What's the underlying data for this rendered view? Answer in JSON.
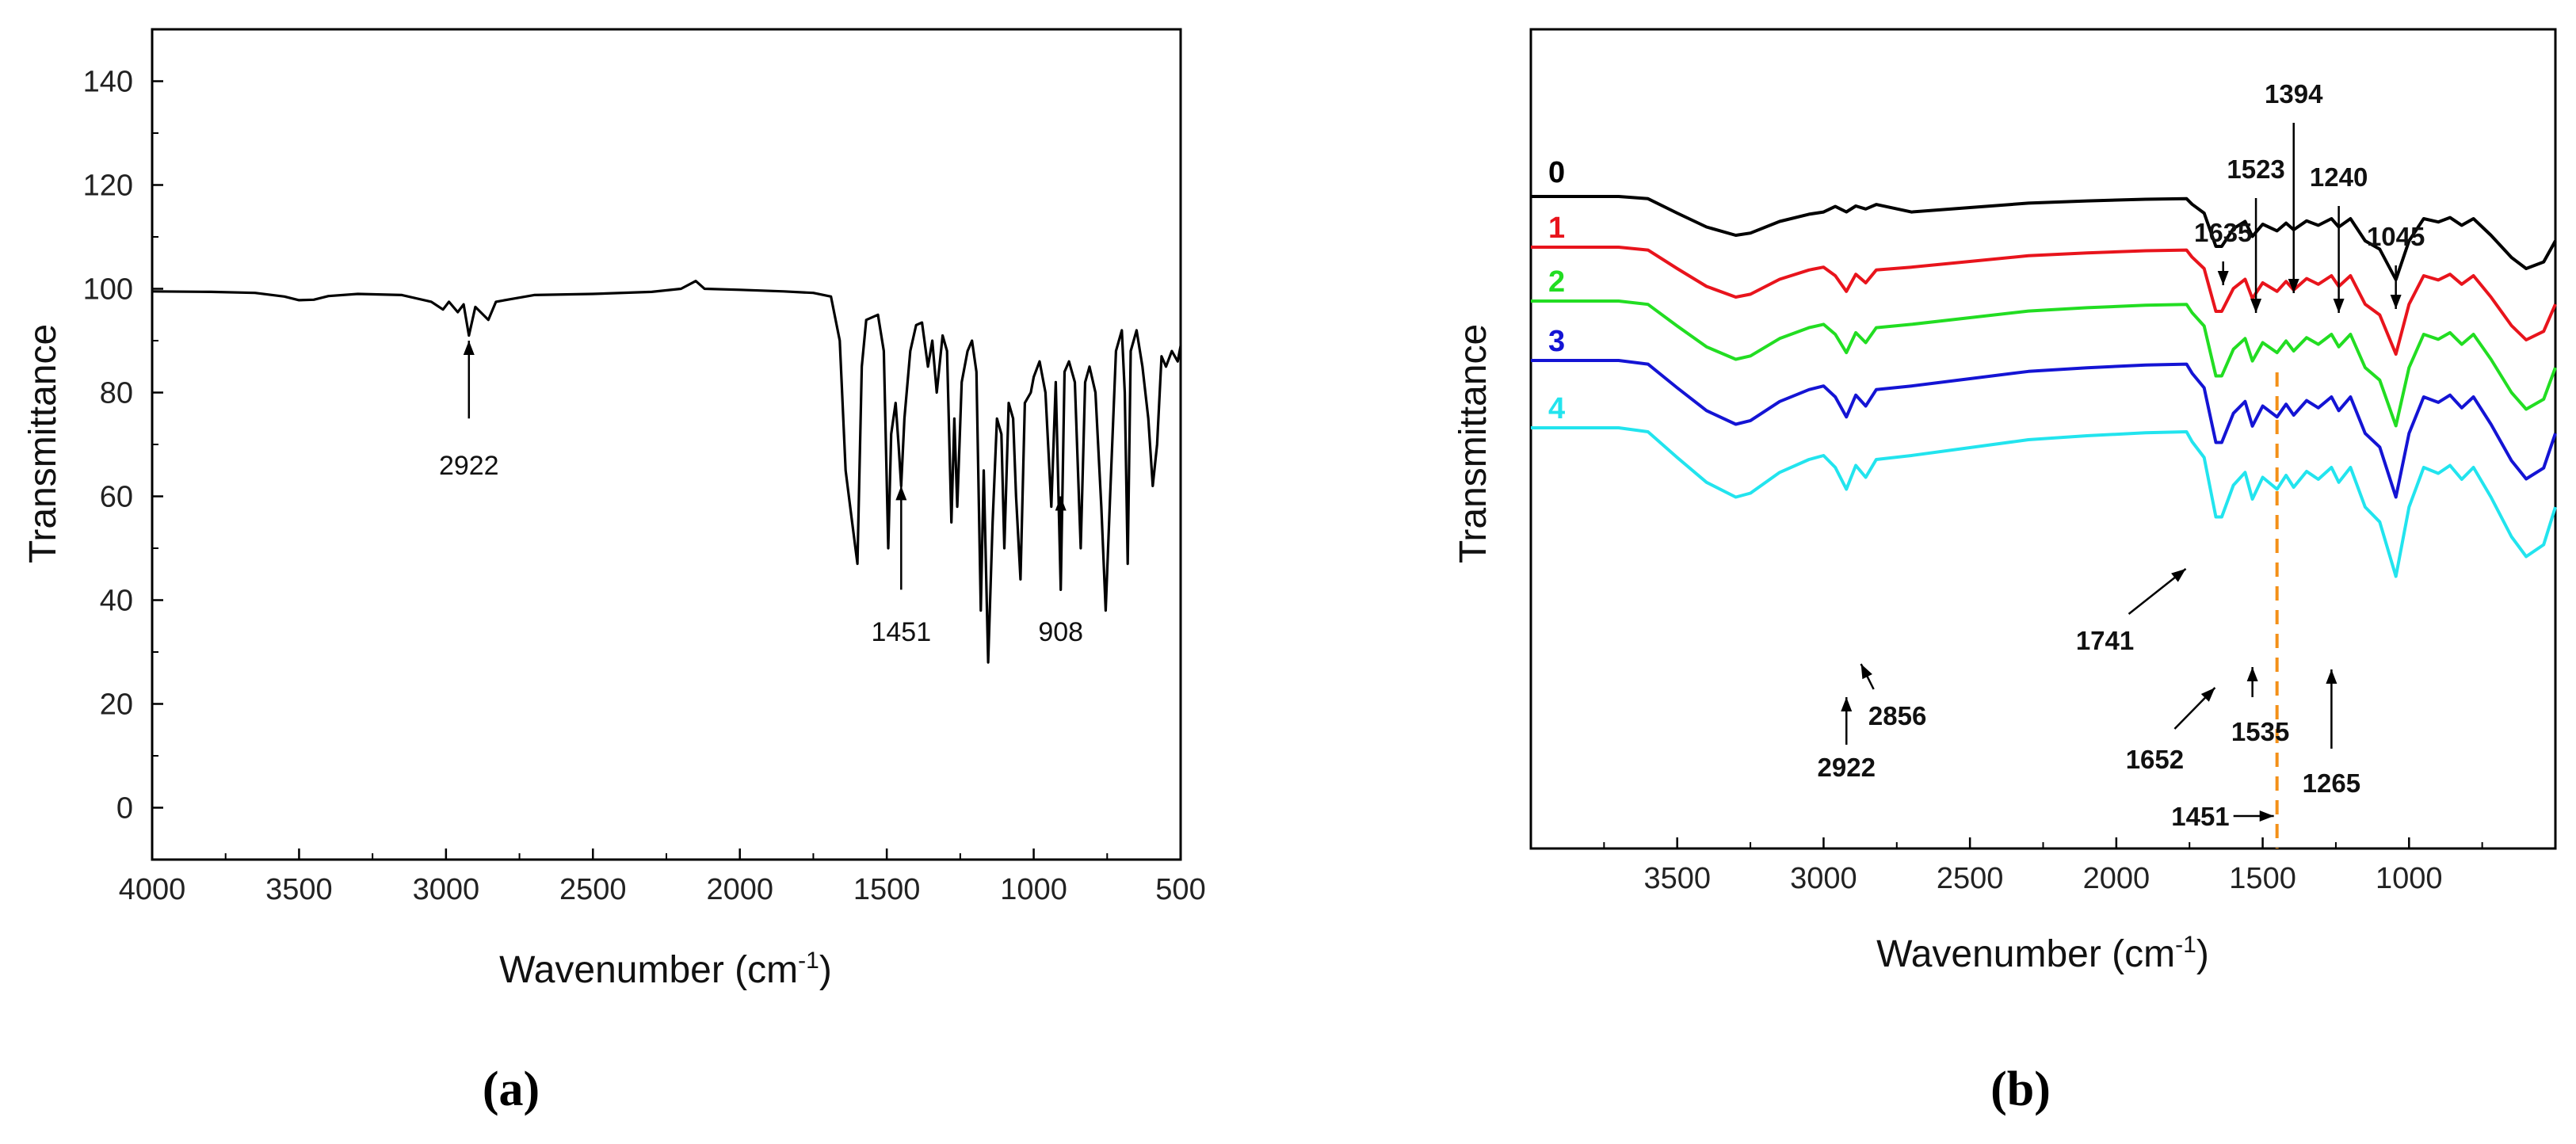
{
  "chart_data": [
    {
      "panel": "(a)",
      "type": "line",
      "xlabel": "Wavenumber (cm",
      "xlabel_sup": "-1",
      "xlabel_close": ")",
      "ylabel": "Transmittance",
      "xlim": [
        4000,
        500
      ],
      "ylim": [
        -10,
        150
      ],
      "xticks": [
        4000,
        3500,
        3000,
        2500,
        2000,
        1500,
        1000,
        500
      ],
      "yticks": [
        0,
        20,
        40,
        60,
        80,
        100,
        120,
        140
      ],
      "series": [
        {
          "name": "spectrum",
          "color": "#000000",
          "points": [
            [
              4000,
              99.5
            ],
            [
              3800,
              99.4
            ],
            [
              3650,
              99.2
            ],
            [
              3550,
              98.5
            ],
            [
              3500,
              97.8
            ],
            [
              3450,
              97.9
            ],
            [
              3400,
              98.6
            ],
            [
              3300,
              99.0
            ],
            [
              3150,
              98.8
            ],
            [
              3050,
              97.5
            ],
            [
              3010,
              96.0
            ],
            [
              2990,
              97.5
            ],
            [
              2960,
              95.5
            ],
            [
              2940,
              97.0
            ],
            [
              2922,
              91.0
            ],
            [
              2900,
              96.5
            ],
            [
              2856,
              94.0
            ],
            [
              2830,
              97.5
            ],
            [
              2700,
              98.8
            ],
            [
              2500,
              99.0
            ],
            [
              2300,
              99.4
            ],
            [
              2200,
              100.0
            ],
            [
              2150,
              101.5
            ],
            [
              2120,
              100.0
            ],
            [
              2000,
              99.8
            ],
            [
              1850,
              99.5
            ],
            [
              1750,
              99.2
            ],
            [
              1690,
              98.5
            ],
            [
              1660,
              90.0
            ],
            [
              1640,
              65.0
            ],
            [
              1620,
              56.0
            ],
            [
              1600,
              47.0
            ],
            [
              1585,
              85.0
            ],
            [
              1570,
              94.0
            ],
            [
              1530,
              95.0
            ],
            [
              1510,
              88.0
            ],
            [
              1495,
              50.0
            ],
            [
              1485,
              72.0
            ],
            [
              1470,
              78.0
            ],
            [
              1460,
              70.0
            ],
            [
              1451,
              62.0
            ],
            [
              1440,
              75.0
            ],
            [
              1420,
              88.0
            ],
            [
              1400,
              93.0
            ],
            [
              1380,
              93.5
            ],
            [
              1360,
              85.0
            ],
            [
              1345,
              90.0
            ],
            [
              1330,
              80.0
            ],
            [
              1310,
              91.0
            ],
            [
              1295,
              88.0
            ],
            [
              1280,
              55.0
            ],
            [
              1270,
              75.0
            ],
            [
              1260,
              58.0
            ],
            [
              1245,
              82.0
            ],
            [
              1225,
              88.0
            ],
            [
              1210,
              90.0
            ],
            [
              1195,
              84.0
            ],
            [
              1180,
              38.0
            ],
            [
              1170,
              65.0
            ],
            [
              1155,
              28.0
            ],
            [
              1140,
              55.0
            ],
            [
              1125,
              75.0
            ],
            [
              1110,
              72.0
            ],
            [
              1100,
              50.0
            ],
            [
              1085,
              78.0
            ],
            [
              1070,
              75.0
            ],
            [
              1060,
              60.0
            ],
            [
              1045,
              44.0
            ],
            [
              1030,
              78.0
            ],
            [
              1010,
              80.0
            ],
            [
              1000,
              83.0
            ],
            [
              980,
              86.0
            ],
            [
              960,
              80.0
            ],
            [
              940,
              58.0
            ],
            [
              925,
              82.0
            ],
            [
              908,
              42.0
            ],
            [
              895,
              84.0
            ],
            [
              880,
              86.0
            ],
            [
              860,
              82.0
            ],
            [
              840,
              50.0
            ],
            [
              825,
              82.0
            ],
            [
              810,
              85.0
            ],
            [
              790,
              80.0
            ],
            [
              770,
              58.0
            ],
            [
              755,
              38.0
            ],
            [
              740,
              60.0
            ],
            [
              720,
              88.0
            ],
            [
              700,
              92.0
            ],
            [
              690,
              80.0
            ],
            [
              680,
              47.0
            ],
            [
              670,
              88.0
            ],
            [
              650,
              92.0
            ],
            [
              630,
              85.0
            ],
            [
              610,
              75.0
            ],
            [
              595,
              62.0
            ],
            [
              580,
              70.0
            ],
            [
              565,
              87.0
            ],
            [
              550,
              85.0
            ],
            [
              530,
              88.0
            ],
            [
              510,
              86.0
            ],
            [
              500,
              89.0
            ]
          ]
        }
      ],
      "annotations": [
        {
          "text": "2922",
          "x": 2922,
          "y_tip": 90,
          "y_tail": 75,
          "label_y": 66
        },
        {
          "text": "1451",
          "x": 1451,
          "y_tip": 62,
          "y_tail": 42,
          "label_y": 34
        },
        {
          "text": "908",
          "x": 908,
          "y_tip": 60,
          "y_tail": 42,
          "label_y": 34
        }
      ]
    },
    {
      "panel": "(b)",
      "type": "line",
      "xlabel": "Wavenumber (cm",
      "xlabel_sup": "-1",
      "xlabel_close": ")",
      "ylabel": "Transmittance",
      "xlim": [
        4000,
        500
      ],
      "ylim": [
        0,
        100
      ],
      "xticks": [
        3500,
        3000,
        2500,
        2000,
        1500,
        1000
      ],
      "series": [
        {
          "name": "0",
          "color": "#000000",
          "offset": 0
        },
        {
          "name": "1",
          "color": "#e8141c",
          "offset": 1
        },
        {
          "name": "2",
          "color": "#22dd22",
          "offset": 2
        },
        {
          "name": "3",
          "color": "#1414d4",
          "offset": 3
        },
        {
          "name": "4",
          "color": "#22e4ee",
          "offset": 4
        }
      ],
      "marker_line": {
        "x": 1451,
        "color": "#f39018",
        "label": "1451"
      },
      "annotations_top": [
        "1635",
        "1523",
        "1394",
        "1240",
        "1045"
      ],
      "annotations_bottom": [
        "2922",
        "2856",
        "1741",
        "1652",
        "1535",
        "1265"
      ]
    }
  ],
  "panel_labels": [
    "(a)",
    "(b)"
  ]
}
